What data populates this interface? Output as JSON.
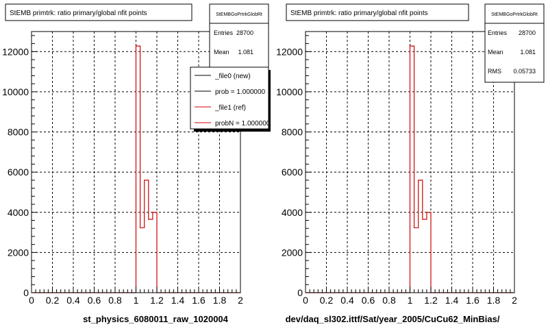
{
  "colors": {
    "new": "#000000",
    "ref": "#cc0000",
    "axis": "#000000",
    "grid": "#000000"
  },
  "chart_data": [
    {
      "type": "histogram",
      "title": "StEMB primtrk: ratio primary/global nfit points",
      "xlabel": "st_physics_6080011_raw_1020004",
      "xlim": [
        0,
        2
      ],
      "ylim": [
        0,
        13000
      ],
      "x_ticks": [
        "0",
        "0.2",
        "0.4",
        "0.6",
        "0.8",
        "1",
        "1.2",
        "1.4",
        "1.6",
        "1.8",
        "2"
      ],
      "y_ticks": [
        "0",
        "2000",
        "4000",
        "6000",
        "8000",
        "10000",
        "12000"
      ],
      "grid": true,
      "stats": {
        "title": "StEMBGoPrtrkGlobRt",
        "entries_label": "Entries",
        "entries": "28700",
        "mean_label": "Mean",
        "mean": "1.081"
      },
      "legend": [
        "_file0 (new)",
        "prob = 1.000000",
        "_file1 (ref)",
        "probN = 1.000000"
      ],
      "series": [
        {
          "name": "_file1 (ref)",
          "bins": [
            {
              "x0": 1.0,
              "x1": 1.04,
              "y": 12280
            },
            {
              "x0": 1.04,
              "x1": 1.08,
              "y": 3230
            },
            {
              "x0": 1.08,
              "x1": 1.12,
              "y": 5600
            },
            {
              "x0": 1.12,
              "x1": 1.16,
              "y": 3650
            },
            {
              "x0": 1.16,
              "x1": 1.2,
              "y": 4000
            }
          ]
        }
      ]
    },
    {
      "type": "histogram",
      "title": "StEMB primtrk: ratio primary/global nfit points",
      "xlabel": "dev/daq_sl302.ittf/Sat/year_2005/CuCu62_MinBias/",
      "xlim": [
        0,
        2
      ],
      "ylim": [
        0,
        13000
      ],
      "x_ticks": [
        "0",
        "0.2",
        "0.4",
        "0.6",
        "0.8",
        "1",
        "1.2",
        "1.4",
        "1.6",
        "1.8",
        "2"
      ],
      "y_ticks": [
        "0",
        "2000",
        "4000",
        "6000",
        "8000",
        "10000",
        "12000"
      ],
      "grid": true,
      "stats": {
        "title": "StEMBGoPrtrkGlobRt",
        "entries_label": "Entries",
        "entries": "28700",
        "mean_label": "Mean",
        "mean": "1.081",
        "rms_label": "RMS",
        "rms": "0.05733"
      },
      "series": [
        {
          "name": "",
          "bins": [
            {
              "x0": 1.0,
              "x1": 1.04,
              "y": 12280
            },
            {
              "x0": 1.04,
              "x1": 1.08,
              "y": 3230
            },
            {
              "x0": 1.08,
              "x1": 1.12,
              "y": 5600
            },
            {
              "x0": 1.12,
              "x1": 1.16,
              "y": 3650
            },
            {
              "x0": 1.16,
              "x1": 1.2,
              "y": 4000
            }
          ]
        }
      ]
    }
  ]
}
